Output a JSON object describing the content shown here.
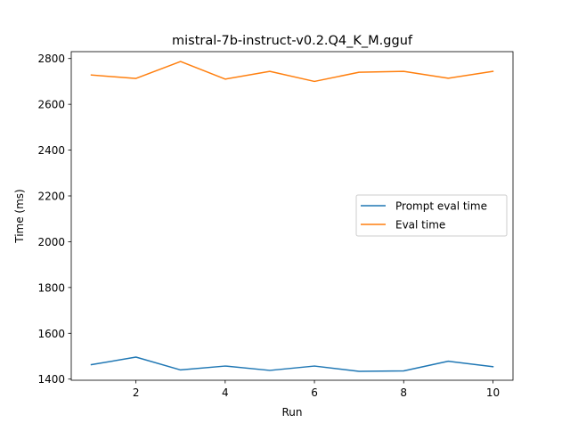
{
  "chart_data": {
    "type": "line",
    "title": "mistral-7b-instruct-v0.2.Q4_K_M.gguf",
    "xlabel": "Run",
    "ylabel": "Time (ms)",
    "x": [
      1,
      2,
      3,
      4,
      5,
      6,
      7,
      8,
      9,
      10
    ],
    "xlim": [
      0.55,
      10.45
    ],
    "ylim": [
      1395,
      2830
    ],
    "xticks": [
      2,
      4,
      6,
      8,
      10
    ],
    "yticks": [
      1400,
      1600,
      1800,
      2000,
      2200,
      2400,
      2600,
      2800
    ],
    "grid": false,
    "legend_position": "center-right",
    "series": [
      {
        "name": "Prompt eval time",
        "color": "#1f77b4",
        "values": [
          1463,
          1496,
          1440,
          1457,
          1438,
          1457,
          1434,
          1436,
          1478,
          1454
        ]
      },
      {
        "name": "Eval time",
        "color": "#ff7f0e",
        "values": [
          2728,
          2713,
          2787,
          2710,
          2744,
          2700,
          2740,
          2744,
          2714,
          2744
        ]
      }
    ]
  }
}
